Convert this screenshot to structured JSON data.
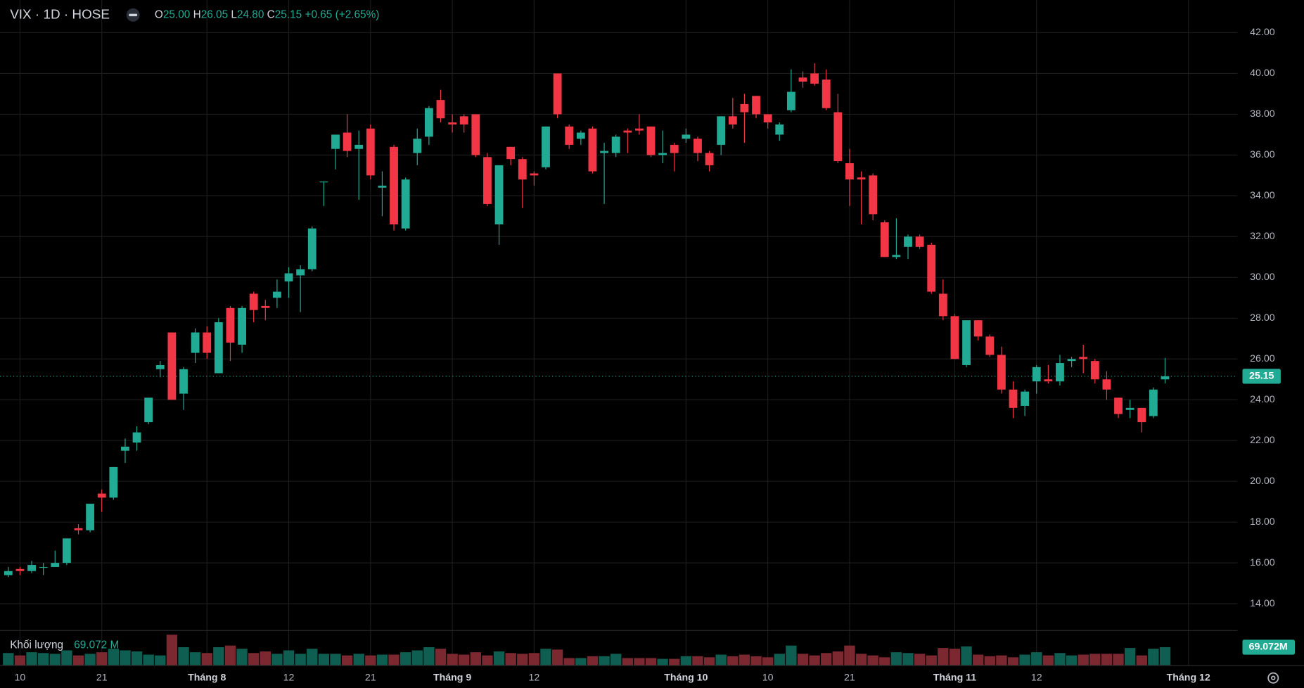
{
  "header": {
    "symbol": "VIX · 1D · HOSE",
    "o_key": "O",
    "o": "25.00",
    "h_key": "H",
    "h": "26.05",
    "l_key": "L",
    "l": "24.80",
    "c_key": "C",
    "c": "25.15",
    "change": "+0.65 (+2.65%)"
  },
  "chart_data": {
    "type": "candlestick",
    "up_color": "#22ab94",
    "down_color": "#f23645",
    "volume_up_color": "#0e5e52",
    "volume_down_color": "#7b2830",
    "grid": true,
    "categories": [
      null,
      "10",
      null,
      null,
      null,
      null,
      null,
      null,
      "21",
      null,
      null,
      null,
      null,
      null,
      null,
      null,
      null,
      "Tháng 8",
      null,
      null,
      null,
      null,
      null,
      null,
      "12",
      null,
      null,
      null,
      null,
      null,
      null,
      "21",
      null,
      null,
      null,
      null,
      null,
      null,
      "Tháng 9",
      null,
      null,
      null,
      null,
      null,
      null,
      "12",
      null,
      null,
      null,
      null,
      null,
      null,
      null,
      null,
      null,
      null,
      null,
      null,
      "Tháng 10",
      null,
      null,
      null,
      null,
      null,
      null,
      "10",
      null,
      null,
      null,
      null,
      null,
      null,
      "21",
      null,
      null,
      null,
      null,
      null,
      null,
      null,
      null,
      "Tháng 11",
      null,
      null,
      null,
      null,
      null,
      null,
      "12",
      null,
      null,
      null,
      null,
      null,
      null,
      null,
      null,
      null,
      null,
      null,
      null,
      "Tháng 12"
    ],
    "open": [
      15.4,
      15.7,
      15.6,
      15.8,
      15.8,
      16.0,
      17.7,
      17.6,
      19.4,
      19.2,
      21.5,
      21.9,
      22.9,
      25.5,
      27.3,
      24.3,
      26.3,
      27.3,
      25.3,
      28.5,
      26.7,
      29.2,
      28.6,
      29.0,
      29.8,
      30.1,
      30.4,
      34.7,
      36.3,
      37.1,
      36.3,
      37.3,
      34.4,
      36.4,
      32.4,
      36.1,
      36.9,
      38.7,
      37.6,
      37.9,
      38.0,
      35.9,
      32.6,
      36.4,
      35.8,
      35.1,
      35.4,
      40.0,
      37.4,
      36.8,
      37.3,
      36.1,
      36.1,
      37.2,
      37.3,
      37.4,
      36.0,
      36.5,
      36.8,
      36.8,
      36.1,
      36.5,
      37.9,
      38.5,
      38.9,
      38.0,
      37.0,
      38.2,
      39.8,
      40.0,
      39.7,
      38.1,
      35.6,
      34.9,
      35.0,
      32.7,
      31.0,
      31.5,
      32.0,
      31.6,
      29.2,
      28.1,
      25.7,
      27.9,
      27.1,
      26.2,
      24.5,
      23.7,
      24.9,
      25.0,
      24.9,
      25.9,
      26.1,
      25.9,
      25.0,
      24.1,
      23.5,
      23.6,
      23.2,
      25.0,
      null,
      null
    ],
    "high": [
      15.8,
      15.8,
      16.1,
      16.0,
      16.6,
      17.2,
      17.9,
      18.9,
      19.6,
      20.7,
      22.1,
      22.7,
      24.1,
      25.9,
      27.3,
      25.6,
      27.5,
      27.6,
      28.0,
      28.6,
      28.6,
      29.3,
      28.9,
      29.9,
      30.5,
      30.6,
      32.5,
      34.7,
      37.0,
      38.0,
      37.2,
      37.5,
      35.2,
      36.5,
      34.9,
      37.3,
      38.4,
      39.2,
      38.0,
      38.0,
      38.0,
      36.1,
      35.5,
      36.4,
      35.9,
      35.2,
      37.4,
      40.0,
      37.5,
      37.2,
      37.4,
      36.6,
      37.0,
      37.3,
      38.0,
      37.4,
      37.2,
      36.6,
      37.3,
      36.9,
      36.2,
      37.9,
      38.8,
      39.0,
      38.9,
      38.0,
      37.6,
      40.2,
      40.1,
      40.5,
      40.2,
      39.0,
      36.3,
      35.2,
      35.1,
      32.8,
      32.9,
      32.1,
      32.1,
      31.7,
      29.9,
      28.2,
      27.9,
      27.9,
      27.2,
      26.6,
      24.9,
      24.5,
      25.7,
      25.7,
      26.2,
      26.1,
      26.7,
      26.0,
      25.4,
      24.1,
      24.0,
      23.6,
      24.6,
      26.05,
      null,
      null
    ],
    "low": [
      15.3,
      15.4,
      15.5,
      15.4,
      15.8,
      15.9,
      17.4,
      17.5,
      18.5,
      19.1,
      20.9,
      21.5,
      22.8,
      25.1,
      24.0,
      23.5,
      25.8,
      26.0,
      25.3,
      25.9,
      26.3,
      27.8,
      27.9,
      28.5,
      29.0,
      28.3,
      30.3,
      33.5,
      35.3,
      35.9,
      33.8,
      34.8,
      33.0,
      32.3,
      32.3,
      35.5,
      36.5,
      37.6,
      37.1,
      37.1,
      35.9,
      33.5,
      31.6,
      35.5,
      33.4,
      34.5,
      35.3,
      37.8,
      36.3,
      36.5,
      35.1,
      33.6,
      35.9,
      36.1,
      37.0,
      35.9,
      35.6,
      35.2,
      36.6,
      35.7,
      35.2,
      36.0,
      37.3,
      36.6,
      37.8,
      37.3,
      36.7,
      38.1,
      39.3,
      39.4,
      38.2,
      35.6,
      33.5,
      32.6,
      32.8,
      31.0,
      30.9,
      30.9,
      31.4,
      29.2,
      27.9,
      26.0,
      25.6,
      26.9,
      26.1,
      24.3,
      23.1,
      23.2,
      24.3,
      24.8,
      24.7,
      25.6,
      25.3,
      24.8,
      24.0,
      23.1,
      23.1,
      22.4,
      23.1,
      24.8,
      null,
      null
    ],
    "close": [
      15.6,
      15.6,
      15.9,
      15.8,
      16.0,
      17.2,
      17.6,
      18.9,
      19.2,
      20.7,
      21.7,
      22.4,
      24.1,
      25.7,
      24.0,
      25.5,
      27.3,
      26.3,
      27.8,
      26.8,
      28.5,
      28.4,
      28.5,
      29.3,
      30.2,
      30.4,
      32.4,
      34.7,
      37.0,
      36.2,
      36.5,
      35.0,
      34.5,
      32.6,
      34.8,
      36.8,
      38.3,
      37.8,
      37.5,
      37.5,
      36.0,
      33.6,
      35.5,
      35.8,
      34.8,
      35.0,
      37.4,
      38.0,
      36.5,
      37.1,
      35.2,
      36.2,
      36.9,
      37.1,
      37.2,
      36.0,
      36.1,
      36.1,
      37.0,
      36.1,
      35.5,
      37.9,
      37.5,
      38.1,
      38.0,
      37.6,
      37.5,
      39.1,
      39.6,
      39.5,
      38.3,
      35.7,
      34.8,
      34.8,
      33.1,
      31.0,
      31.1,
      32.0,
      31.5,
      29.3,
      28.1,
      26.0,
      27.9,
      27.1,
      26.2,
      24.5,
      23.6,
      24.4,
      25.6,
      24.9,
      25.8,
      26.0,
      26.0,
      25.0,
      24.5,
      23.3,
      23.6,
      22.9,
      24.5,
      25.15,
      null,
      null
    ],
    "volume": [
      47,
      38,
      50,
      47,
      44,
      57,
      38,
      44,
      50,
      63,
      57,
      53,
      41,
      38,
      116,
      69,
      50,
      47,
      69,
      75,
      63,
      47,
      53,
      44,
      57,
      44,
      63,
      44,
      44,
      38,
      44,
      38,
      41,
      41,
      50,
      57,
      69,
      63,
      44,
      41,
      50,
      38,
      53,
      47,
      44,
      47,
      63,
      60,
      28,
      28,
      35,
      35,
      44,
      28,
      28,
      28,
      25,
      25,
      35,
      35,
      31,
      41,
      35,
      41,
      35,
      31,
      44,
      75,
      44,
      38,
      47,
      53,
      75,
      44,
      38,
      31,
      50,
      47,
      44,
      38,
      66,
      63,
      72,
      41,
      35,
      38,
      31,
      41,
      50,
      38,
      47,
      38,
      41,
      44,
      44,
      44,
      66,
      38,
      63,
      69.072,
      null,
      null
    ],
    "volume_title": "Khối lượng",
    "volume_label": "69.072 M",
    "volume_badge": "69.072M",
    "last_price_label": "25.15",
    "ylim": [
      12.6,
      43.6
    ],
    "yticks": [
      {
        "value": 14,
        "label": "14.00"
      },
      {
        "value": 16,
        "label": "16.00"
      },
      {
        "value": 18,
        "label": "18.00"
      },
      {
        "value": 20,
        "label": "20.00"
      },
      {
        "value": 22,
        "label": "22.00"
      },
      {
        "value": 24,
        "label": "24.00"
      },
      {
        "value": 26,
        "label": "26.00"
      },
      {
        "value": 28,
        "label": "28.00"
      },
      {
        "value": 30,
        "label": "30.00"
      },
      {
        "value": 32,
        "label": "32.00"
      },
      {
        "value": 34,
        "label": "34.00"
      },
      {
        "value": 36,
        "label": "36.00"
      },
      {
        "value": 38,
        "label": "38.00"
      },
      {
        "value": 40,
        "label": "40.00"
      },
      {
        "value": 42,
        "label": "42.00"
      }
    ]
  }
}
